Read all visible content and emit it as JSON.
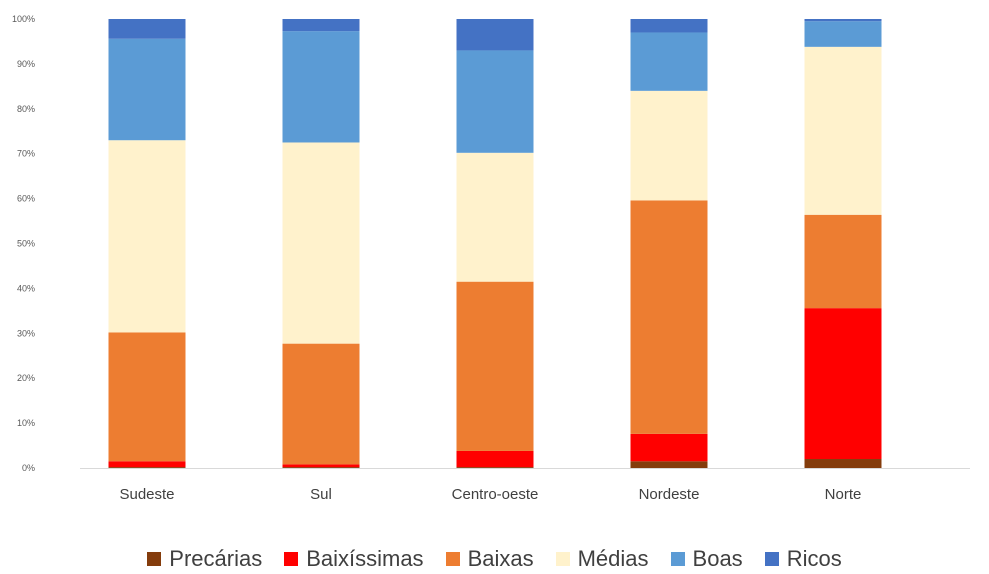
{
  "chart_data": {
    "type": "bar",
    "stacked": true,
    "percent": true,
    "categories": [
      "Sudeste",
      "Sul",
      "Centro-oeste",
      "Nordeste",
      "Norte"
    ],
    "ylim": [
      0,
      100
    ],
    "yticks": [
      "0%",
      "10%",
      "20%",
      "30%",
      "40%",
      "50%",
      "60%",
      "70%",
      "80%",
      "90%",
      "100%"
    ],
    "grid": false,
    "legend_position": "bottom",
    "series": [
      {
        "name": "Precárias",
        "color": "#843c0c",
        "values": [
          0.2,
          0.2,
          0.2,
          1.5,
          2.0
        ]
      },
      {
        "name": "Baixíssimas",
        "color": "#ff0000",
        "values": [
          1.3,
          0.6,
          3.6,
          6.1,
          33.6
        ]
      },
      {
        "name": "Baixas",
        "color": "#ed7d31",
        "values": [
          28.7,
          26.9,
          37.7,
          52.0,
          20.8
        ]
      },
      {
        "name": "Médias",
        "color": "#fff2cc",
        "values": [
          42.8,
          44.8,
          28.7,
          24.4,
          37.4
        ]
      },
      {
        "name": "Boas",
        "color": "#5b9bd5",
        "values": [
          22.6,
          24.8,
          22.8,
          13.0,
          5.7
        ]
      },
      {
        "name": "Ricos",
        "color": "#4472c4",
        "values": [
          4.4,
          2.7,
          7.0,
          3.0,
          0.5
        ]
      }
    ]
  }
}
